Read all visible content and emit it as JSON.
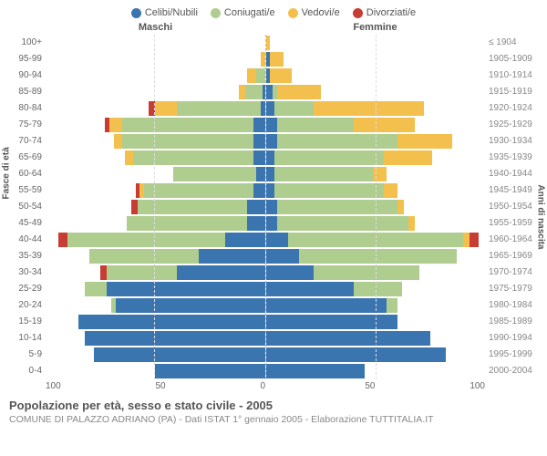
{
  "chart": {
    "type": "population-pyramid",
    "title": "Popolazione per età, sesso e stato civile - 2005",
    "subtitle": "COMUNE DI PALAZZO ADRIANO (PA) - Dati ISTAT 1° gennaio 2005 - Elaborazione TUTTITALIA.IT",
    "header_male": "Maschi",
    "header_female": "Femmine",
    "y_left_label": "Fasce di età",
    "y_right_label": "Anni di nascita",
    "x_max": 100,
    "x_ticks": [
      100,
      50,
      0,
      50,
      100
    ],
    "colors": {
      "celibi": "#3b75af",
      "coniugati": "#aecd8f",
      "vedovi": "#f3c04e",
      "divorziati": "#c73c33",
      "grid": "#dddddd",
      "center": "#bbbbbb",
      "text": "#555555",
      "text_light": "#888888",
      "background": "#ffffff"
    },
    "legend": [
      {
        "key": "celibi",
        "label": "Celibi/Nubili"
      },
      {
        "key": "coniugati",
        "label": "Coniugati/e"
      },
      {
        "key": "vedovi",
        "label": "Vedovi/e"
      },
      {
        "key": "divorziati",
        "label": "Divorziati/e"
      }
    ],
    "age_bands": [
      "100+",
      "95-99",
      "90-94",
      "85-89",
      "80-84",
      "75-79",
      "70-74",
      "65-69",
      "60-64",
      "55-59",
      "50-54",
      "45-49",
      "40-44",
      "35-39",
      "30-34",
      "25-29",
      "20-24",
      "15-19",
      "10-14",
      "5-9",
      "0-4"
    ],
    "birth_bands": [
      "≤ 1904",
      "1905-1909",
      "1910-1914",
      "1915-1919",
      "1920-1924",
      "1925-1929",
      "1930-1934",
      "1935-1939",
      "1940-1944",
      "1945-1949",
      "1950-1954",
      "1955-1959",
      "1960-1964",
      "1965-1969",
      "1970-1974",
      "1975-1979",
      "1980-1984",
      "1985-1989",
      "1990-1994",
      "1995-1999",
      "2000-2004"
    ],
    "male": [
      {
        "celibi": 0,
        "coniugati": 0,
        "vedovi": 0,
        "divorziati": 0
      },
      {
        "celibi": 0,
        "coniugati": 0,
        "vedovi": 2,
        "divorziati": 0
      },
      {
        "celibi": 0,
        "coniugati": 4,
        "vedovi": 4,
        "divorziati": 0
      },
      {
        "celibi": 1,
        "coniugati": 8,
        "vedovi": 3,
        "divorziati": 0
      },
      {
        "celibi": 2,
        "coniugati": 38,
        "vedovi": 10,
        "divorziati": 3
      },
      {
        "celibi": 5,
        "coniugati": 60,
        "vedovi": 6,
        "divorziati": 2
      },
      {
        "celibi": 5,
        "coniugati": 60,
        "vedovi": 4,
        "divorziati": 0
      },
      {
        "celibi": 5,
        "coniugati": 55,
        "vedovi": 4,
        "divorziati": 0
      },
      {
        "celibi": 4,
        "coniugati": 38,
        "vedovi": 0,
        "divorziati": 0
      },
      {
        "celibi": 5,
        "coniugati": 50,
        "vedovi": 2,
        "divorziati": 2
      },
      {
        "celibi": 8,
        "coniugati": 50,
        "vedovi": 0,
        "divorziati": 3
      },
      {
        "celibi": 8,
        "coniugati": 55,
        "vedovi": 0,
        "divorziati": 0
      },
      {
        "celibi": 18,
        "coniugati": 72,
        "vedovi": 0,
        "divorziati": 4
      },
      {
        "celibi": 30,
        "coniugati": 50,
        "vedovi": 0,
        "divorziati": 0
      },
      {
        "celibi": 40,
        "coniugati": 32,
        "vedovi": 0,
        "divorziati": 3
      },
      {
        "celibi": 72,
        "coniugati": 10,
        "vedovi": 0,
        "divorziati": 0
      },
      {
        "celibi": 68,
        "coniugati": 2,
        "vedovi": 0,
        "divorziati": 0
      },
      {
        "celibi": 85,
        "coniugati": 0,
        "vedovi": 0,
        "divorziati": 0
      },
      {
        "celibi": 82,
        "coniugati": 0,
        "vedovi": 0,
        "divorziati": 0
      },
      {
        "celibi": 78,
        "coniugati": 0,
        "vedovi": 0,
        "divorziati": 0
      },
      {
        "celibi": 50,
        "coniugati": 0,
        "vedovi": 0,
        "divorziati": 0
      }
    ],
    "female": [
      {
        "celibi": 0,
        "coniugati": 0,
        "vedovi": 2,
        "divorziati": 0
      },
      {
        "celibi": 2,
        "coniugati": 0,
        "vedovi": 6,
        "divorziati": 0
      },
      {
        "celibi": 2,
        "coniugati": 0,
        "vedovi": 10,
        "divorziati": 0
      },
      {
        "celibi": 3,
        "coniugati": 2,
        "vedovi": 20,
        "divorziati": 0
      },
      {
        "celibi": 4,
        "coniugati": 18,
        "vedovi": 50,
        "divorziati": 0
      },
      {
        "celibi": 5,
        "coniugati": 35,
        "vedovi": 28,
        "divorziati": 0
      },
      {
        "celibi": 5,
        "coniugati": 55,
        "vedovi": 25,
        "divorziati": 0
      },
      {
        "celibi": 4,
        "coniugati": 50,
        "vedovi": 22,
        "divorziati": 0
      },
      {
        "celibi": 4,
        "coniugati": 45,
        "vedovi": 6,
        "divorziati": 0
      },
      {
        "celibi": 4,
        "coniugati": 50,
        "vedovi": 6,
        "divorziati": 0
      },
      {
        "celibi": 5,
        "coniugati": 55,
        "vedovi": 3,
        "divorziati": 0
      },
      {
        "celibi": 5,
        "coniugati": 60,
        "vedovi": 3,
        "divorziati": 0
      },
      {
        "celibi": 10,
        "coniugati": 80,
        "vedovi": 3,
        "divorziati": 4
      },
      {
        "celibi": 15,
        "coniugati": 72,
        "vedovi": 0,
        "divorziati": 0
      },
      {
        "celibi": 22,
        "coniugati": 48,
        "vedovi": 0,
        "divorziati": 0
      },
      {
        "celibi": 40,
        "coniugati": 22,
        "vedovi": 0,
        "divorziati": 0
      },
      {
        "celibi": 55,
        "coniugati": 5,
        "vedovi": 0,
        "divorziati": 0
      },
      {
        "celibi": 60,
        "coniugati": 0,
        "vedovi": 0,
        "divorziati": 0
      },
      {
        "celibi": 75,
        "coniugati": 0,
        "vedovi": 0,
        "divorziati": 0
      },
      {
        "celibi": 82,
        "coniugati": 0,
        "vedovi": 0,
        "divorziati": 0
      },
      {
        "celibi": 45,
        "coniugati": 0,
        "vedovi": 0,
        "divorziati": 0
      }
    ]
  }
}
